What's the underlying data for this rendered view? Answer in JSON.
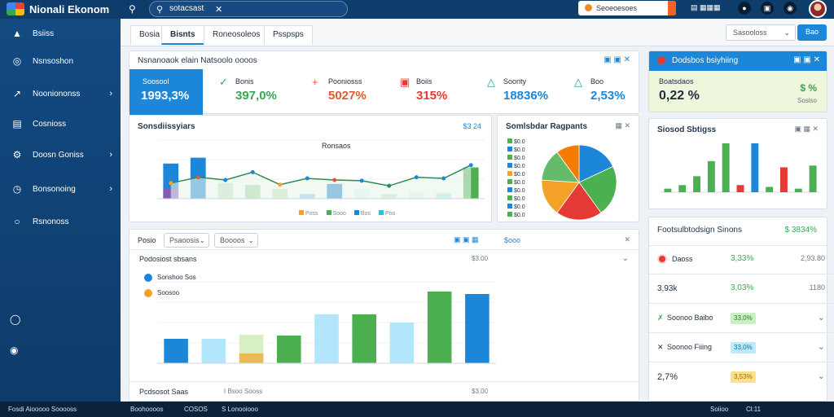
{
  "topbar": {
    "brand": "Nionali Ekonom",
    "search_value": "sotacsast",
    "pill_label": "Seoeoesoes",
    "layout_label": "▤ ▦▦▦"
  },
  "sidebar": {
    "items": [
      {
        "label": "Bsiiss",
        "icon": "▲",
        "chevron": ""
      },
      {
        "label": "Nsnsoshon",
        "icon": "◎",
        "chevron": ""
      },
      {
        "label": "Nooniononss",
        "icon": "↗",
        "chevron": "›"
      },
      {
        "label": "Cosnioss",
        "icon": "▤",
        "chevron": ""
      },
      {
        "label": "Doosn Goniss",
        "icon": "⚙",
        "chevron": "›"
      },
      {
        "label": "Bonsonoing",
        "icon": "◷",
        "chevron": "›"
      },
      {
        "label": "Rsnonoss",
        "icon": "○",
        "chevron": ""
      }
    ]
  },
  "tabs": [
    "Bosia",
    "Bisnts",
    "Roneosoleos",
    "Psspsps"
  ],
  "filter_select": "Sasooloss",
  "filter_button": "Bao",
  "summary": {
    "title": "Nsnanoaok elain Natsoolo oooos",
    "kpis": [
      {
        "label": "Soosool",
        "value": "1993,3%",
        "icon": ""
      },
      {
        "label": "Bonis",
        "value": "397,0%",
        "icon": "✓"
      },
      {
        "label": "Pooniosss",
        "value": "5027%",
        "icon": "+"
      },
      {
        "label": "Boiis",
        "value": "315%",
        "icon": "▣"
      },
      {
        "label": "Soonty",
        "value": "18836%",
        "icon": "△"
      },
      {
        "label": "Boo",
        "value": "2,53%",
        "icon": "△"
      }
    ]
  },
  "side_alert": {
    "title": "Dodsbos bsiyhiing",
    "sub_label": "Boatsdaos",
    "value": "0,22 %",
    "pct": "$ %",
    "side_label": "Sosiso"
  },
  "chart_main": {
    "title": "Sonsdiissyiars",
    "amount": "$3 24",
    "legend_title": "Ronsaos",
    "legend": [
      "Poss",
      "Sooo",
      "Bos",
      "Poo"
    ]
  },
  "chart_pie": {
    "title": "Somlsbdar Ragpants",
    "legend_rows": [
      "$0.0",
      "$0.0",
      "$0.0",
      "$0.0",
      "$0.0",
      "$0.0",
      "$0.0",
      "$0.0",
      "$0.0",
      "$0.0"
    ]
  },
  "chart_side": {
    "title": "Siosod Sbtigss"
  },
  "bottom_panel": {
    "select_a": "Psaoosis",
    "select_b": "Boooos",
    "left_label": "Posio",
    "right_amount": "$ooo",
    "subtitle": "Podosiost sbsans",
    "sub_amount": "$3.00",
    "footer_left": "Pcdsosot Saas",
    "footer_mid": "I Bsoo Sooss",
    "footer_amount": "$3.00",
    "legend": [
      "Sonshoo Sos",
      "Soosoo"
    ]
  },
  "side_list": {
    "title": "Footsulbtodsign Sinons",
    "title_value": "$ 3834%",
    "rows": [
      {
        "label": "Daoss",
        "value": "3,33%",
        "extra": "2,93.80",
        "badge_color": ""
      },
      {
        "label": "3,93k",
        "value": "3,03%",
        "extra": "1180",
        "badge_color": ""
      },
      {
        "label": "Soonoo Baibo",
        "value": "33,0%",
        "extra": "",
        "badge_color": "#c9efc2"
      },
      {
        "label": "Soonoo Fiiing",
        "value": "33,0%",
        "extra": "",
        "badge_color": "#bfe9f8"
      },
      {
        "label": "2,7%",
        "value": "3,53%",
        "extra": "",
        "badge_color": "#fbe08a"
      }
    ]
  },
  "statusbar": {
    "left": "Fosdi Aiooooo Sooooss",
    "mid1": "Boohoooos",
    "mid2": "COSOS",
    "mid3": "S Lonooiooo",
    "right": "Soiioo",
    "right2": "Cl:11"
  },
  "chart_data": [
    {
      "type": "bar",
      "id": "main",
      "categories": [
        "a",
        "b",
        "c",
        "d",
        "e",
        "f",
        "g",
        "h",
        "i",
        "j",
        "k",
        "l"
      ],
      "series": [
        {
          "values": [
            90,
            105,
            40,
            35,
            25,
            12,
            38,
            25,
            12,
            18,
            14,
            80
          ]
        }
      ],
      "line": [
        40,
        55,
        48,
        68,
        36,
        52,
        48,
        46,
        33,
        55,
        52,
        86
      ],
      "ylim": [
        0,
        150
      ]
    },
    {
      "type": "pie",
      "id": "pie",
      "values": [
        18,
        22,
        20,
        16,
        14,
        10
      ],
      "colors": [
        "#1c86d9",
        "#4caf50",
        "#e53935",
        "#f4a127",
        "#66bb6a",
        "#f57c00"
      ]
    },
    {
      "type": "bar",
      "id": "side",
      "values": [
        4,
        8,
        18,
        35,
        55,
        8,
        55,
        6,
        28,
        4,
        30
      ]
    },
    {
      "type": "bar",
      "id": "bottom",
      "values": [
        30,
        30,
        35,
        34,
        60,
        60,
        50,
        88,
        85
      ],
      "ylim": [
        0,
        100
      ]
    }
  ]
}
